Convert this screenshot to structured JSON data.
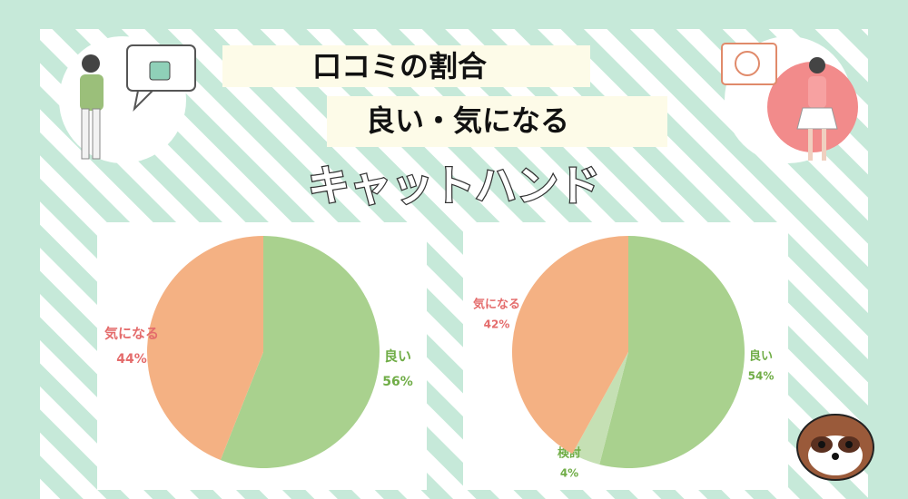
{
  "header": {
    "title": "口コミの割合",
    "subtitle": "良い・気になる",
    "brand": "キャットハンド"
  },
  "chart_data": [
    {
      "type": "pie",
      "categories": [
        "良い",
        "気になる"
      ],
      "values": [
        56,
        44
      ],
      "value_labels": [
        "56%",
        "44%"
      ],
      "colors": [
        "#a9d18e",
        "#f4b183"
      ],
      "label_colors": [
        "#70ad47",
        "#e46c6c"
      ]
    },
    {
      "type": "pie",
      "categories": [
        "良い",
        "検討",
        "気になる"
      ],
      "values": [
        54,
        4,
        42
      ],
      "value_labels": [
        "54%",
        "4%",
        "42%"
      ],
      "colors": [
        "#a9d18e",
        "#c5e0b4",
        "#f4b183"
      ],
      "label_colors": [
        "#70ad47",
        "#70ad47",
        "#e46c6c"
      ]
    }
  ]
}
